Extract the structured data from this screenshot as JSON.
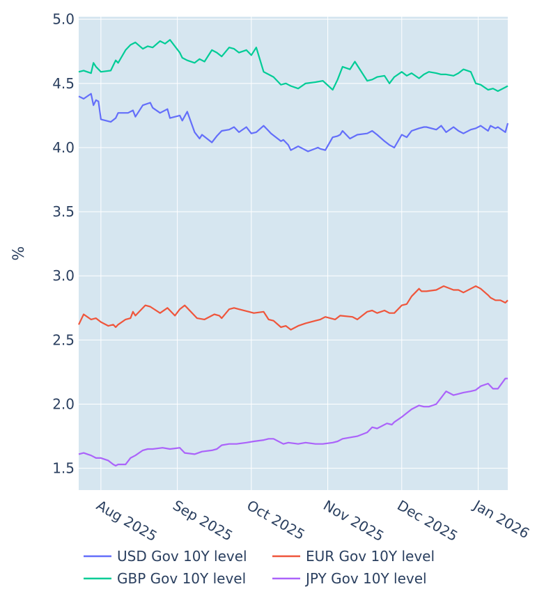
{
  "chart_data": {
    "type": "line",
    "ylabel": "%",
    "xlabel": "",
    "ylim": [
      1.33,
      5.02
    ],
    "x_range": [
      "2025-07-23",
      "2026-01-13"
    ],
    "y_ticks": [
      "1.5",
      "2.0",
      "2.5",
      "3.0",
      "3.5",
      "4.0",
      "4.5",
      "5.0"
    ],
    "y_tick_values": [
      1.5,
      2.0,
      2.5,
      3.0,
      3.5,
      4.0,
      4.5,
      5.0
    ],
    "x_ticks": [
      "Aug 2025",
      "Sep 2025",
      "Oct 2025",
      "Nov 2025",
      "Dec 2025",
      "Jan 2026"
    ],
    "x_tick_dates": [
      "2025-08-01",
      "2025-09-01",
      "2025-10-01",
      "2025-11-01",
      "2025-12-01",
      "2026-01-01"
    ],
    "plot_background": "#d6e6f0",
    "grid": true,
    "legend_position": "bottom",
    "series": [
      {
        "name": "USD Gov 10Y level",
        "color": "#636efa",
        "x": [
          "2025-07-23",
          "2025-07-25",
          "2025-07-28",
          "2025-07-29",
          "2025-07-30",
          "2025-07-31",
          "2025-08-01",
          "2025-08-05",
          "2025-08-07",
          "2025-08-08",
          "2025-08-12",
          "2025-08-14",
          "2025-08-15",
          "2025-08-18",
          "2025-08-21",
          "2025-08-22",
          "2025-08-25",
          "2025-08-28",
          "2025-08-29",
          "2025-09-02",
          "2025-09-03",
          "2025-09-05",
          "2025-09-08",
          "2025-09-10",
          "2025-09-11",
          "2025-09-15",
          "2025-09-17",
          "2025-09-19",
          "2025-09-22",
          "2025-09-24",
          "2025-09-26",
          "2025-09-29",
          "2025-10-01",
          "2025-10-03",
          "2025-10-06",
          "2025-10-08",
          "2025-10-09",
          "2025-10-13",
          "2025-10-14",
          "2025-10-16",
          "2025-10-17",
          "2025-10-20",
          "2025-10-22",
          "2025-10-24",
          "2025-10-28",
          "2025-10-29",
          "2025-10-31",
          "2025-11-03",
          "2025-11-05",
          "2025-11-06",
          "2025-11-07",
          "2025-11-10",
          "2025-11-12",
          "2025-11-13",
          "2025-11-17",
          "2025-11-19",
          "2025-11-21",
          "2025-11-24",
          "2025-11-26",
          "2025-11-28",
          "2025-12-01",
          "2025-12-03",
          "2025-12-05",
          "2025-12-08",
          "2025-12-10",
          "2025-12-11",
          "2025-12-15",
          "2025-12-17",
          "2025-12-19",
          "2025-12-22",
          "2025-12-24",
          "2025-12-26",
          "2025-12-29",
          "2025-12-31",
          "2026-01-02",
          "2026-01-05",
          "2026-01-06",
          "2026-01-08",
          "2026-01-09",
          "2026-01-12",
          "2026-01-13"
        ],
        "values": [
          4.4,
          4.38,
          4.42,
          4.33,
          4.37,
          4.36,
          4.22,
          4.2,
          4.23,
          4.27,
          4.27,
          4.29,
          4.24,
          4.33,
          4.35,
          4.31,
          4.27,
          4.3,
          4.23,
          4.25,
          4.21,
          4.28,
          4.12,
          4.07,
          4.1,
          4.04,
          4.09,
          4.13,
          4.14,
          4.16,
          4.12,
          4.16,
          4.11,
          4.12,
          4.17,
          4.13,
          4.11,
          4.05,
          4.06,
          4.02,
          3.98,
          4.01,
          3.99,
          3.97,
          4.0,
          3.99,
          3.98,
          4.08,
          4.09,
          4.1,
          4.13,
          4.07,
          4.09,
          4.1,
          4.11,
          4.13,
          4.1,
          4.05,
          4.02,
          4.0,
          4.1,
          4.08,
          4.13,
          4.15,
          4.16,
          4.16,
          4.14,
          4.17,
          4.12,
          4.16,
          4.13,
          4.11,
          4.14,
          4.15,
          4.17,
          4.13,
          4.17,
          4.15,
          4.16,
          4.12,
          4.19
        ]
      },
      {
        "name": "EUR Gov 10Y level",
        "color": "#ef553b",
        "x": [
          "2025-07-23",
          "2025-07-25",
          "2025-07-28",
          "2025-07-30",
          "2025-08-01",
          "2025-08-04",
          "2025-08-06",
          "2025-08-07",
          "2025-08-08",
          "2025-08-11",
          "2025-08-13",
          "2025-08-14",
          "2025-08-15",
          "2025-08-19",
          "2025-08-21",
          "2025-08-25",
          "2025-08-28",
          "2025-08-31",
          "2025-09-02",
          "2025-09-04",
          "2025-09-05",
          "2025-09-09",
          "2025-09-12",
          "2025-09-16",
          "2025-09-18",
          "2025-09-19",
          "2025-09-22",
          "2025-09-24",
          "2025-09-26",
          "2025-09-30",
          "2025-10-02",
          "2025-10-06",
          "2025-10-08",
          "2025-10-10",
          "2025-10-13",
          "2025-10-15",
          "2025-10-17",
          "2025-10-20",
          "2025-10-23",
          "2025-10-27",
          "2025-10-29",
          "2025-10-31",
          "2025-11-04",
          "2025-11-06",
          "2025-11-11",
          "2025-11-13",
          "2025-11-17",
          "2025-11-19",
          "2025-11-21",
          "2025-11-24",
          "2025-11-26",
          "2025-11-28",
          "2025-12-01",
          "2025-12-03",
          "2025-12-05",
          "2025-12-08",
          "2025-12-09",
          "2025-12-11",
          "2025-12-15",
          "2025-12-18",
          "2025-12-22",
          "2025-12-24",
          "2025-12-26",
          "2025-12-29",
          "2025-12-31",
          "2026-01-02",
          "2026-01-05",
          "2026-01-06",
          "2026-01-08",
          "2026-01-10",
          "2026-01-12",
          "2026-01-13"
        ],
        "values": [
          2.62,
          2.7,
          2.66,
          2.67,
          2.64,
          2.61,
          2.62,
          2.6,
          2.62,
          2.66,
          2.67,
          2.72,
          2.69,
          2.77,
          2.76,
          2.71,
          2.75,
          2.69,
          2.74,
          2.77,
          2.75,
          2.67,
          2.66,
          2.7,
          2.69,
          2.67,
          2.74,
          2.75,
          2.74,
          2.72,
          2.71,
          2.72,
          2.66,
          2.65,
          2.6,
          2.61,
          2.58,
          2.61,
          2.63,
          2.65,
          2.66,
          2.68,
          2.66,
          2.69,
          2.68,
          2.66,
          2.72,
          2.73,
          2.71,
          2.73,
          2.71,
          2.71,
          2.77,
          2.78,
          2.84,
          2.9,
          2.88,
          2.88,
          2.89,
          2.92,
          2.89,
          2.89,
          2.87,
          2.9,
          2.92,
          2.9,
          2.85,
          2.83,
          2.81,
          2.81,
          2.79,
          2.81
        ]
      },
      {
        "name": "GBP Gov 10Y level",
        "color": "#00cc96",
        "x": [
          "2025-07-23",
          "2025-07-25",
          "2025-07-28",
          "2025-07-29",
          "2025-07-30",
          "2025-08-01",
          "2025-08-05",
          "2025-08-07",
          "2025-08-08",
          "2025-08-11",
          "2025-08-13",
          "2025-08-15",
          "2025-08-18",
          "2025-08-20",
          "2025-08-22",
          "2025-08-25",
          "2025-08-27",
          "2025-08-29",
          "2025-09-02",
          "2025-09-03",
          "2025-09-05",
          "2025-09-08",
          "2025-09-10",
          "2025-09-12",
          "2025-09-15",
          "2025-09-17",
          "2025-09-19",
          "2025-09-22",
          "2025-09-24",
          "2025-09-26",
          "2025-09-29",
          "2025-10-01",
          "2025-10-03",
          "2025-10-06",
          "2025-10-08",
          "2025-10-10",
          "2025-10-13",
          "2025-10-15",
          "2025-10-17",
          "2025-10-20",
          "2025-10-23",
          "2025-10-27",
          "2025-10-30",
          "2025-11-03",
          "2025-11-05",
          "2025-11-07",
          "2025-11-10",
          "2025-11-12",
          "2025-11-14",
          "2025-11-17",
          "2025-11-19",
          "2025-11-21",
          "2025-11-24",
          "2025-11-26",
          "2025-11-28",
          "2025-12-01",
          "2025-12-03",
          "2025-12-05",
          "2025-12-08",
          "2025-12-10",
          "2025-12-12",
          "2025-12-15",
          "2025-12-17",
          "2025-12-19",
          "2025-12-22",
          "2025-12-24",
          "2025-12-26",
          "2025-12-29",
          "2025-12-31",
          "2026-01-02",
          "2026-01-05",
          "2026-01-07",
          "2026-01-09",
          "2026-01-12",
          "2026-01-13"
        ],
        "values": [
          4.59,
          4.6,
          4.58,
          4.66,
          4.63,
          4.59,
          4.6,
          4.68,
          4.66,
          4.76,
          4.8,
          4.82,
          4.77,
          4.79,
          4.78,
          4.83,
          4.81,
          4.84,
          4.74,
          4.7,
          4.68,
          4.66,
          4.69,
          4.67,
          4.76,
          4.74,
          4.71,
          4.78,
          4.77,
          4.74,
          4.76,
          4.72,
          4.78,
          4.59,
          4.57,
          4.55,
          4.49,
          4.5,
          4.48,
          4.46,
          4.5,
          4.51,
          4.52,
          4.45,
          4.53,
          4.63,
          4.61,
          4.67,
          4.61,
          4.52,
          4.53,
          4.55,
          4.56,
          4.5,
          4.55,
          4.59,
          4.56,
          4.58,
          4.54,
          4.57,
          4.59,
          4.58,
          4.57,
          4.57,
          4.56,
          4.58,
          4.61,
          4.59,
          4.5,
          4.49,
          4.45,
          4.46,
          4.44,
          4.47,
          4.48
        ]
      },
      {
        "name": "JPY Gov 10Y level",
        "color": "#ab63fa",
        "x": [
          "2025-07-23",
          "2025-07-25",
          "2025-07-28",
          "2025-07-30",
          "2025-08-01",
          "2025-08-04",
          "2025-08-06",
          "2025-08-07",
          "2025-08-08",
          "2025-08-11",
          "2025-08-13",
          "2025-08-15",
          "2025-08-18",
          "2025-08-20",
          "2025-08-22",
          "2025-08-26",
          "2025-08-29",
          "2025-09-02",
          "2025-09-04",
          "2025-09-08",
          "2025-09-11",
          "2025-09-15",
          "2025-09-17",
          "2025-09-19",
          "2025-09-22",
          "2025-09-25",
          "2025-09-29",
          "2025-10-02",
          "2025-10-06",
          "2025-10-08",
          "2025-10-10",
          "2025-10-14",
          "2025-10-16",
          "2025-10-20",
          "2025-10-23",
          "2025-10-27",
          "2025-10-30",
          "2025-11-03",
          "2025-11-05",
          "2025-11-07",
          "2025-11-10",
          "2025-11-13",
          "2025-11-17",
          "2025-11-19",
          "2025-11-21",
          "2025-11-25",
          "2025-11-27",
          "2025-11-28",
          "2025-12-01",
          "2025-12-03",
          "2025-12-05",
          "2025-12-08",
          "2025-12-10",
          "2025-12-12",
          "2025-12-15",
          "2025-12-17",
          "2025-12-19",
          "2025-12-22",
          "2025-12-24",
          "2025-12-26",
          "2025-12-29",
          "2025-12-31",
          "2026-01-02",
          "2026-01-05",
          "2026-01-07",
          "2026-01-09",
          "2026-01-12",
          "2026-01-13"
        ],
        "values": [
          1.61,
          1.62,
          1.6,
          1.58,
          1.58,
          1.56,
          1.53,
          1.52,
          1.53,
          1.53,
          1.58,
          1.6,
          1.64,
          1.65,
          1.65,
          1.66,
          1.65,
          1.66,
          1.62,
          1.61,
          1.63,
          1.64,
          1.65,
          1.68,
          1.69,
          1.69,
          1.7,
          1.71,
          1.72,
          1.73,
          1.73,
          1.69,
          1.7,
          1.69,
          1.7,
          1.69,
          1.69,
          1.7,
          1.71,
          1.73,
          1.74,
          1.75,
          1.78,
          1.82,
          1.81,
          1.85,
          1.84,
          1.86,
          1.9,
          1.93,
          1.96,
          1.99,
          1.98,
          1.98,
          2.0,
          2.05,
          2.1,
          2.07,
          2.08,
          2.09,
          2.1,
          2.11,
          2.14,
          2.16,
          2.12,
          2.12,
          2.2,
          2.2
        ]
      }
    ]
  }
}
